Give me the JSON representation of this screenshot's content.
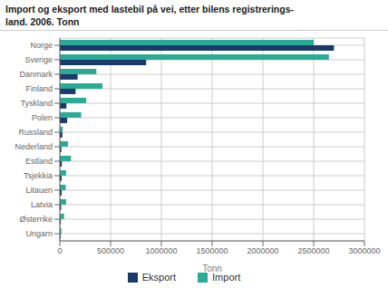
{
  "chart_data": {
    "type": "bar",
    "orientation": "horizontal",
    "title": "Import og eksport med lastebil på vei, etter bilens registrerings-\nland. 2006. Tonn",
    "categories": [
      "Norge",
      "Sverige",
      "Danmark",
      "Finland",
      "Tyskland",
      "Polen",
      "Russland",
      "Nederland",
      "Estland",
      "Tsjekkia",
      "Litauen",
      "Latvia",
      "Østerrike",
      "Ungarn"
    ],
    "series": [
      {
        "name": "Eksport",
        "color": "#1a3a6b",
        "values": [
          2700000,
          850000,
          175000,
          155000,
          65000,
          72000,
          25000,
          15000,
          20000,
          18000,
          18000,
          13000,
          10000,
          8000
        ]
      },
      {
        "name": "Import",
        "color": "#2aab96",
        "values": [
          2500000,
          2650000,
          360000,
          420000,
          260000,
          210000,
          28000,
          80000,
          110000,
          62000,
          58000,
          62000,
          42000,
          16000
        ]
      }
    ],
    "xlabel": "Tonn",
    "xlim": [
      0,
      3000000
    ],
    "xticks": [
      0,
      500000,
      1000000,
      1500000,
      2000000,
      2500000,
      3000000
    ],
    "grid": true,
    "legend": "bottom"
  }
}
